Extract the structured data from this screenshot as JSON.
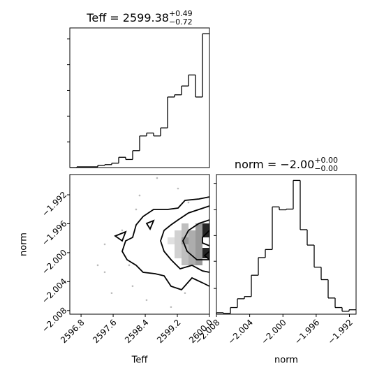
{
  "chart_data": [
    {
      "type": "histogram",
      "title": "Teff = 2599.38",
      "title_upper": "+0.49",
      "title_lower": "−0.72",
      "color": "#000000",
      "bins": [
        2596.52,
        2596.694,
        2596.868,
        2597.042,
        2597.216,
        2597.39,
        2597.564,
        2597.738,
        2597.912,
        2598.086,
        2598.26,
        2598.434,
        2598.608,
        2598.782,
        2598.956,
        2599.13,
        2599.304,
        2599.478,
        2599.652,
        2599.826,
        2600.0
      ],
      "values": [
        0,
        1,
        1,
        1,
        3,
        4,
        6,
        14,
        11,
        23,
        43,
        47,
        43,
        54,
        96,
        99,
        111,
        126,
        96,
        182
      ],
      "xlim": [
        2596.52,
        2600.0
      ],
      "ylim": [
        0,
        190
      ],
      "yticks": [
        35,
        70,
        105,
        140,
        175
      ]
    },
    {
      "type": "scatter",
      "xlabel": "Teff",
      "ylabel": "norm",
      "color": "#bbbbbb",
      "x": [
        2597.216,
        2597.39,
        2597.563,
        2598.085,
        2598.172,
        2598.694,
        2599.216,
        2599.477,
        2597.824,
        2598.433,
        2599.042,
        2597.39,
        2597.998,
        2599.39,
        2598.259
      ],
      "y": [
        -2.00173,
        -1.99884,
        -2.00558,
        -2.00462,
        -1.99402,
        -1.98968,
        -1.99113,
        -1.99306,
        -1.99691,
        -2.00655,
        -2.00751,
        -2.00269,
        -2.00173,
        -2.00558,
        -1.99209
      ],
      "xlim": [
        2596.52,
        2600.0
      ],
      "ylim": [
        -2.0085,
        -1.9892
      ],
      "xticks": [
        2596.8,
        2597.6,
        2598.4,
        2599.2,
        {
          "value": 2600.0,
          "label": "2600.0"
        }
      ],
      "yticks": [
        {
          "value": -2.008,
          "label": "−2.008"
        },
        {
          "value": -2.004,
          "label": "−2.004"
        },
        {
          "value": -2.0,
          "label": "−2.000"
        },
        {
          "value": -1.996,
          "label": "−1.996"
        },
        {
          "value": -1.992,
          "label": "−1.992"
        }
      ]
    },
    {
      "type": "histogram",
      "title": "norm = −2.00",
      "title_upper": "+0.00",
      "title_lower": "−0.00",
      "xlabel": "norm",
      "color": "#000000",
      "bins": [
        -2.008,
        -2.00716,
        -2.00632,
        -2.00548,
        -2.00464,
        -2.0038,
        -2.00296,
        -2.00212,
        -2.00128,
        -2.00044,
        -1.9996,
        -1.99876,
        -1.99792,
        -1.99708,
        -1.99624,
        -1.9954,
        -1.99456,
        -1.99372,
        -1.99288,
        -1.99204,
        -1.9912
      ],
      "values": [
        2,
        1,
        9,
        21,
        24,
        53,
        77,
        88,
        146,
        142,
        143,
        182,
        115,
        94,
        64,
        47,
        22,
        9,
        4,
        6
      ],
      "xlim": [
        -2.008,
        -1.9912
      ],
      "ylim": [
        0,
        190
      ],
      "yticks": [
        35,
        72,
        107,
        142,
        178
      ],
      "xticks": [
        {
          "value": -2.008,
          "label": "−2.008"
        },
        {
          "value": -2.004,
          "label": "−2.004"
        },
        {
          "value": -2.0,
          "label": "−2.000"
        },
        {
          "value": -1.996,
          "label": "−1.996"
        },
        {
          "value": -1.992,
          "label": "−1.992"
        }
      ]
    }
  ]
}
